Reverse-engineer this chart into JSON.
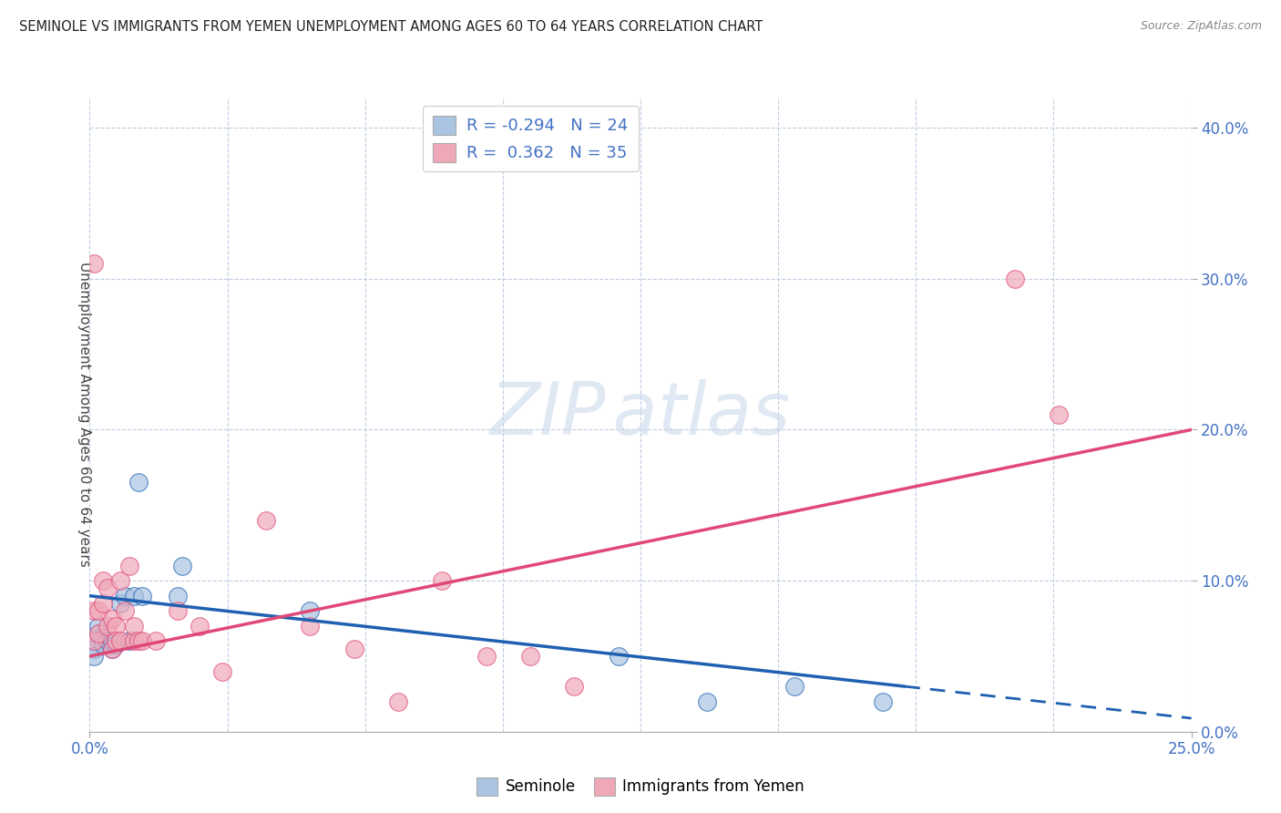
{
  "title": "SEMINOLE VS IMMIGRANTS FROM YEMEN UNEMPLOYMENT AMONG AGES 60 TO 64 YEARS CORRELATION CHART",
  "source": "Source: ZipAtlas.com",
  "ylabel": "Unemployment Among Ages 60 to 64 years",
  "xlim": [
    0.0,
    0.25
  ],
  "ylim": [
    0.0,
    0.42
  ],
  "seminole_R": -0.294,
  "seminole_N": 24,
  "yemen_R": 0.362,
  "yemen_N": 35,
  "seminole_color": "#aac4e2",
  "seminole_line_color": "#2060b0",
  "yemen_color": "#f0a8b8",
  "yemen_line_color": "#e04878",
  "seminole_x": [
    0.001,
    0.001,
    0.001,
    0.002,
    0.002,
    0.003,
    0.003,
    0.004,
    0.005,
    0.005,
    0.006,
    0.007,
    0.008,
    0.009,
    0.01,
    0.011,
    0.012,
    0.02,
    0.021,
    0.05,
    0.12,
    0.14,
    0.16,
    0.18
  ],
  "seminole_y": [
    0.06,
    0.055,
    0.05,
    0.065,
    0.07,
    0.062,
    0.058,
    0.06,
    0.055,
    0.06,
    0.058,
    0.085,
    0.09,
    0.06,
    0.09,
    0.165,
    0.09,
    0.09,
    0.11,
    0.08,
    0.05,
    0.02,
    0.03,
    0.02
  ],
  "yemen_x": [
    0.001,
    0.001,
    0.001,
    0.002,
    0.002,
    0.003,
    0.003,
    0.004,
    0.004,
    0.005,
    0.005,
    0.006,
    0.006,
    0.007,
    0.007,
    0.008,
    0.009,
    0.01,
    0.01,
    0.011,
    0.012,
    0.015,
    0.02,
    0.025,
    0.03,
    0.04,
    0.05,
    0.06,
    0.07,
    0.08,
    0.09,
    0.1,
    0.11,
    0.21,
    0.22
  ],
  "yemen_y": [
    0.31,
    0.08,
    0.06,
    0.08,
    0.065,
    0.1,
    0.085,
    0.095,
    0.07,
    0.075,
    0.055,
    0.07,
    0.06,
    0.1,
    0.06,
    0.08,
    0.11,
    0.06,
    0.07,
    0.06,
    0.06,
    0.06,
    0.08,
    0.07,
    0.04,
    0.14,
    0.07,
    0.055,
    0.02,
    0.1,
    0.05,
    0.05,
    0.03,
    0.3,
    0.21
  ],
  "trend_blue_x0": 0.0,
  "trend_blue_y0": 0.09,
  "trend_blue_x1": 0.185,
  "trend_blue_y1": 0.03,
  "trend_blue_solid_end": 0.185,
  "trend_blue_dash_end": 0.25,
  "trend_pink_x0": 0.0,
  "trend_pink_y0": 0.05,
  "trend_pink_x1": 0.25,
  "trend_pink_y1": 0.2,
  "yticks": [
    0.0,
    0.1,
    0.2,
    0.3,
    0.4
  ],
  "ytick_labels": [
    "0.0%",
    "10.0%",
    "20.0%",
    "30.0%",
    "40.0%"
  ],
  "xtick_left_label": "0.0%",
  "xtick_right_label": "25.0%",
  "grid_color": "#c0cce0",
  "tick_color": "#4472c4"
}
